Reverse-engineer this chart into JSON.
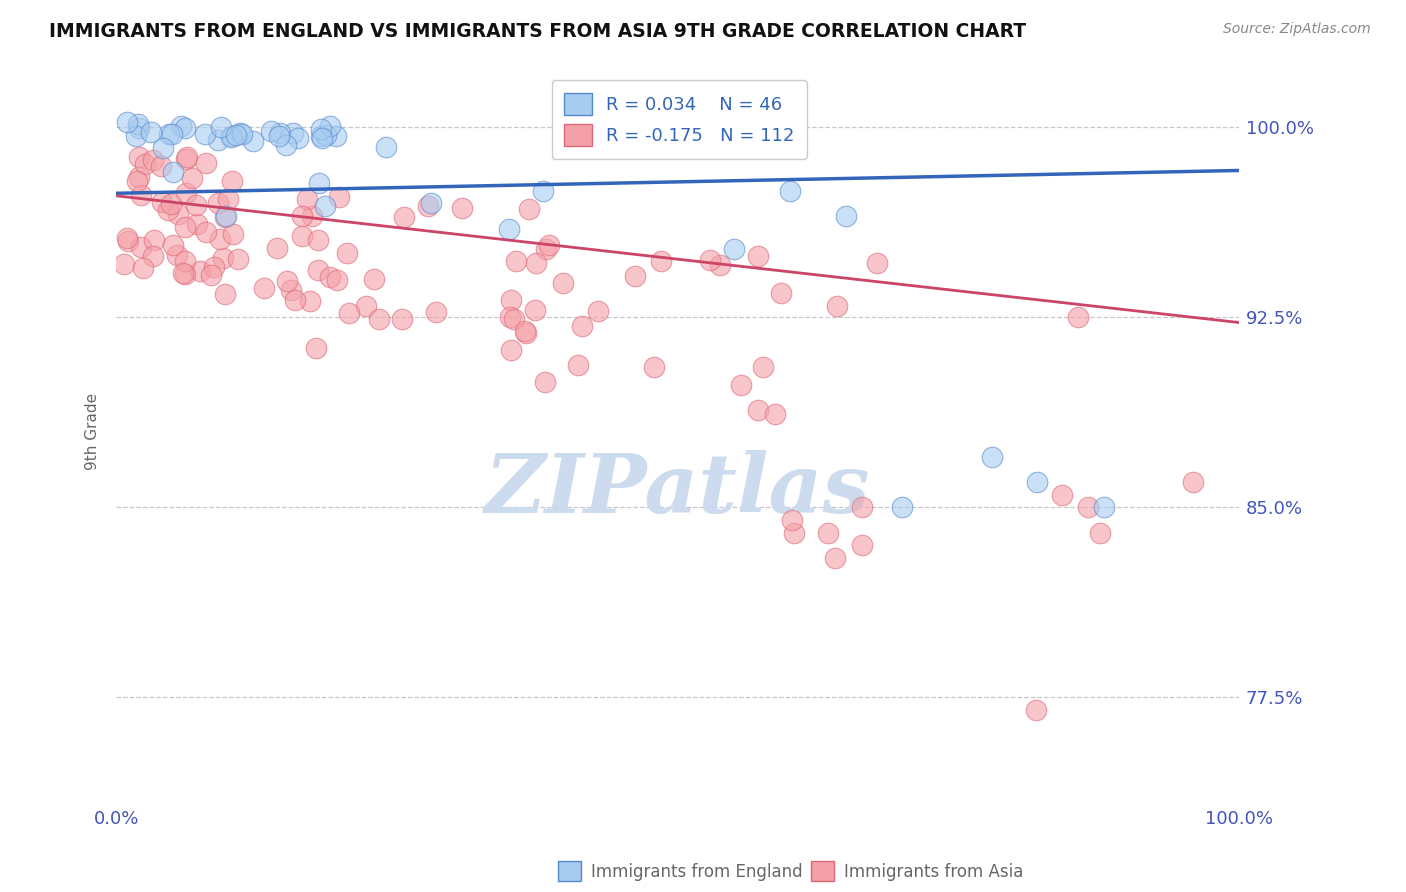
{
  "title": "IMMIGRANTS FROM ENGLAND VS IMMIGRANTS FROM ASIA 9TH GRADE CORRELATION CHART",
  "source_text": "Source: ZipAtlas.com",
  "ylabel": "9th Grade",
  "xlim": [
    0.0,
    1.0
  ],
  "ylim": [
    0.735,
    1.025
  ],
  "yticks": [
    0.775,
    0.85,
    0.925,
    1.0
  ],
  "ytick_labels": [
    "77.5%",
    "85.0%",
    "92.5%",
    "100.0%"
  ],
  "xtick_labels": [
    "0.0%",
    "100.0%"
  ],
  "blue_R": 0.034,
  "blue_N": 46,
  "pink_R": -0.175,
  "pink_N": 112,
  "legend_label_blue": "Immigrants from England",
  "legend_label_pink": "Immigrants from Asia",
  "blue_color": "#A8CCF0",
  "pink_color": "#F4A0A8",
  "blue_edge_color": "#5588CC",
  "pink_edge_color": "#DD6677",
  "blue_line_color": "#3366BB",
  "pink_line_color": "#CC4466",
  "grid_color": "#BBBBBB",
  "watermark_color": "#C8D8EE",
  "blue_trend": [
    0.0,
    0.974,
    1.0,
    0.983
  ],
  "pink_trend": [
    0.0,
    0.973,
    1.0,
    0.923
  ]
}
